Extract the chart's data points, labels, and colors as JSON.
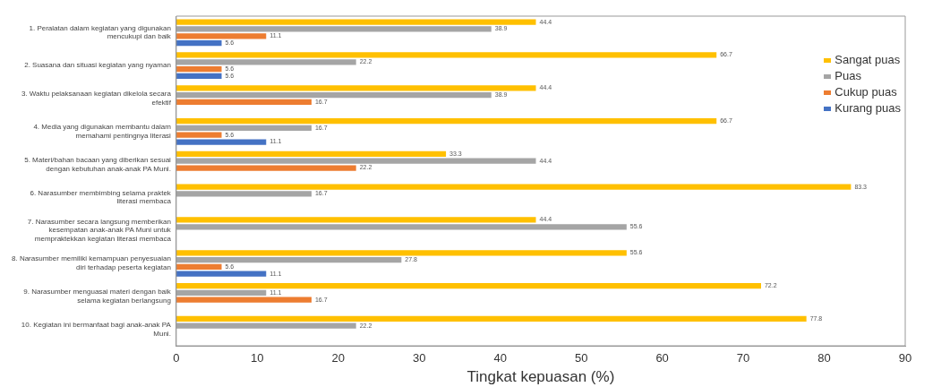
{
  "chart_data": {
    "type": "bar",
    "orientation": "horizontal",
    "xlabel": "Tingkat kepuasan (%)",
    "categories": [
      "1. Peralatan dalam kegiatan yang digunakan mencukupi dan baik",
      "2. Suasana dan situasi kegiatan yang nyaman",
      "3. Waktu pelaksanaan kegiatan dikelola secara efektif",
      "4. Media yang digunakan membantu dalam memahami pentingnya literasi",
      "5. Materi/bahan bacaan yang diberikan sesuai dengan kebutuhan anak-anak PA Muni.",
      "6. Narasumber membimbing selama praktek literasi membaca",
      "7. Narasumber secara langsung memberikan kesempatan anak-anak PA Muni untuk mempraktekkan kegiatan literasi membaca",
      "8. Narasumber memiliki kemampuan penyesuaian diri terhadap peserta kegiatan",
      "9. Narasumber menguasai materi dengan baik selama kegiatan berlangsung",
      "10. Kegiatan ini bermanfaat bagi anak-anak PA Muni."
    ],
    "series": [
      {
        "name": "Sangat puas",
        "color": "#ffc000",
        "values": [
          44.4,
          66.7,
          44.4,
          66.7,
          33.3,
          83.3,
          44.4,
          55.6,
          72.2,
          77.8
        ]
      },
      {
        "name": "Puas",
        "color": "#a5a5a5",
        "values": [
          38.9,
          22.2,
          38.9,
          16.7,
          44.4,
          16.7,
          55.6,
          27.8,
          11.1,
          22.2
        ]
      },
      {
        "name": "Cukup puas",
        "color": "#ed7d31",
        "values": [
          11.1,
          5.6,
          16.7,
          5.6,
          22.2,
          null,
          null,
          5.6,
          16.7,
          null
        ]
      },
      {
        "name": "Kurang puas",
        "color": "#4472c4",
        "values": [
          5.6,
          5.6,
          null,
          11.1,
          null,
          null,
          null,
          11.1,
          null,
          null
        ]
      }
    ],
    "xlim": [
      0,
      90
    ],
    "xticks": [
      0,
      10,
      20,
      30,
      40,
      50,
      60,
      70,
      80,
      90
    ],
    "grid": false,
    "legend": "right",
    "data_labels": true
  }
}
